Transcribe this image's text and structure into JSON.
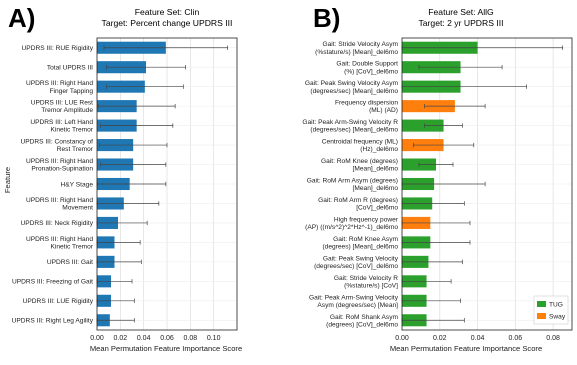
{
  "chart_data": [
    {
      "type": "bar",
      "orientation": "horizontal",
      "panel_label": "A)",
      "title": "Feature Set: Clin",
      "subtitle": "Target: Percent change UPDRS III",
      "xlabel": "Mean Permutation Feature Importance Score",
      "ylabel": "Feature",
      "xlim": [
        0.0,
        0.12
      ],
      "xticks": [
        "0.00",
        "0.02",
        "0.04",
        "0.06",
        "0.08",
        "0.10"
      ],
      "grid": true,
      "colors": {
        "bar": "#1f77b4"
      },
      "categories": [
        [
          "UPDRS III: RUE Rigidity"
        ],
        [
          "Total UPDRS III"
        ],
        [
          "UPDRS III: Right Hand",
          "Finger Tapping"
        ],
        [
          "UPDRS III: LUE Rest",
          "Tremor Amplitude"
        ],
        [
          "UPDRS III: Left Hand",
          "Kinetic Tremor"
        ],
        [
          "UPDRS III: Constancy of",
          "Rest Tremor"
        ],
        [
          "UPDRS III: Right Hand",
          "Pronation-Supination"
        ],
        [
          "H&Y Stage"
        ],
        [
          "UPDRS III: Right Hand",
          "Movement"
        ],
        [
          "UPDRS III: Neck Rigidity"
        ],
        [
          "UPDRS III: Right Hand",
          "Kinetic Tremor"
        ],
        [
          "UPDRS III: Gait"
        ],
        [
          "UPDRS III: Freezing of Gait"
        ],
        [
          "UPDRS III: LUE Rigidity"
        ],
        [
          "UPDRS III: Right Leg Agility"
        ]
      ],
      "values": [
        0.059,
        0.042,
        0.041,
        0.034,
        0.034,
        0.031,
        0.031,
        0.028,
        0.023,
        0.018,
        0.015,
        0.015,
        0.012,
        0.012,
        0.011
      ],
      "error": [
        0.053,
        0.034,
        0.033,
        0.033,
        0.031,
        0.029,
        0.028,
        0.031,
        0.03,
        0.025,
        0.022,
        0.023,
        0.018,
        0.02,
        0.021
      ],
      "groups": []
    },
    {
      "type": "bar",
      "orientation": "horizontal",
      "panel_label": "B)",
      "title": "Feature Set: AllG",
      "subtitle": "Target: 2 yr UPDRS III",
      "xlabel": "Mean Permutation Feature Importance Score",
      "ylabel": "",
      "xlim": [
        0.0,
        0.09
      ],
      "xticks": [
        "0.00",
        "0.02",
        "0.04",
        "0.06",
        "0.08"
      ],
      "grid": true,
      "legend": {
        "position": "bottom-right",
        "entries": [
          {
            "name": "TUG",
            "color": "#2ca02c"
          },
          {
            "name": "Sway",
            "color": "#ff7f0e"
          }
        ]
      },
      "categories": [
        [
          "Gait: Stride Velocity Asym",
          "(%stature/s) [Mean]_del6mo"
        ],
        [
          "Gait: Double Support",
          "(%) [CoV]_del6mo"
        ],
        [
          "Gait: Peak Swing Velocity Asym",
          "(degrees/sec) [Mean]_del6mo"
        ],
        [
          "Frequency dispersion",
          "(ML) (AD)"
        ],
        [
          "Gait: Peak Arm-Swing Velocity R",
          "(degrees/sec) [Mean]_del6mo"
        ],
        [
          "Centroidal frequency (ML)",
          "(Hz)_del6mo"
        ],
        [
          "Gait: RoM Knee (degrees)",
          "[Mean]_del6mo"
        ],
        [
          "Gait: RoM Arm Asym (degrees)",
          "[Mean]_del6mo"
        ],
        [
          "Gait: RoM Arm R (degrees)",
          "[CoV]_del6mo"
        ],
        [
          "High frequency power",
          "(AP) ((m/s^2)^2*Hz^-1)_del6mo"
        ],
        [
          "Gait: RoM Knee Asym",
          "(degrees) [Mean]_del6mo"
        ],
        [
          "Gait: Peak Swing Velocity",
          "(degrees/sec) [CoV]_del6mo"
        ],
        [
          "Gait: Stride Velocity R",
          "(%stature/s) [CoV]"
        ],
        [
          "Gait: Peak Arm-Swing Velocity",
          "Asym (degrees/sec) [Mean]"
        ],
        [
          "Gait: RoM Shank Asym",
          "(degrees) [CoV]_del6mo"
        ]
      ],
      "values": [
        0.04,
        0.031,
        0.031,
        0.028,
        0.022,
        0.022,
        0.018,
        0.017,
        0.016,
        0.015,
        0.015,
        0.014,
        0.013,
        0.013,
        0.013
      ],
      "error": [
        0.045,
        0.022,
        0.035,
        0.016,
        0.01,
        0.016,
        0.009,
        0.027,
        0.017,
        0.021,
        0.021,
        0.018,
        0.013,
        0.018,
        0.02
      ],
      "groups": [
        "TUG",
        "TUG",
        "TUG",
        "Sway",
        "TUG",
        "Sway",
        "TUG",
        "TUG",
        "TUG",
        "Sway",
        "TUG",
        "TUG",
        "TUG",
        "TUG",
        "TUG"
      ]
    }
  ]
}
